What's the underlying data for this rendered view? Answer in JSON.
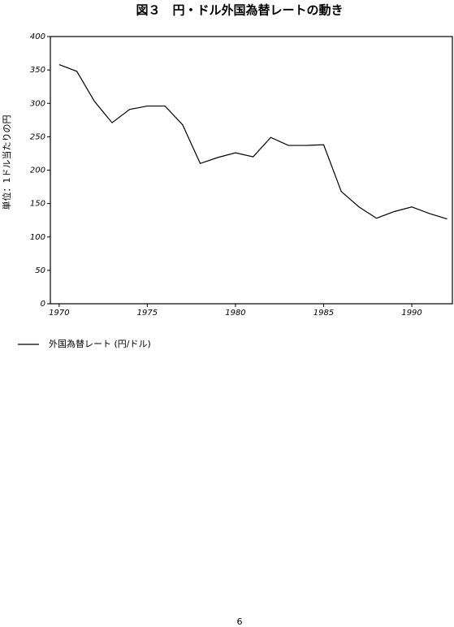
{
  "chart_data": {
    "type": "line",
    "title": "図３　円・ドル外国為替レートの動き",
    "y_label": "単位：1ドル当たりの円",
    "x": [
      1970,
      1971,
      1972,
      1973,
      1974,
      1975,
      1976,
      1977,
      1978,
      1979,
      1980,
      1981,
      1982,
      1983,
      1984,
      1985,
      1986,
      1987,
      1988,
      1989,
      1990,
      1991,
      1992
    ],
    "series": [
      {
        "name": "外国為替レート (円/ドル)",
        "color": "#000000",
        "values": [
          358,
          348,
          303,
          271,
          291,
          296,
          296,
          268,
          210,
          219,
          226,
          220,
          249,
          237,
          237,
          238,
          168,
          145,
          128,
          138,
          145,
          135,
          127
        ]
      }
    ],
    "xlim": [
      1969.5,
      1992.3
    ],
    "xticks": [
      1970,
      1975,
      1980,
      1985,
      1990
    ],
    "ylim": [
      0,
      400
    ],
    "yticks": [
      0,
      50,
      100,
      150,
      200,
      250,
      300,
      350,
      400
    ],
    "legend": "bottom-left"
  },
  "page_number": "6"
}
